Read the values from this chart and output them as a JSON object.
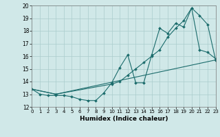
{
  "xlabel": "Humidex (Indice chaleur)",
  "xlim": [
    0,
    23
  ],
  "ylim": [
    12,
    20
  ],
  "yticks": [
    12,
    13,
    14,
    15,
    16,
    17,
    18,
    19,
    20
  ],
  "xticks": [
    0,
    1,
    2,
    3,
    4,
    5,
    6,
    7,
    8,
    9,
    10,
    11,
    12,
    13,
    14,
    15,
    16,
    17,
    18,
    19,
    20,
    21,
    22,
    23
  ],
  "background_color": "#d0e8e8",
  "grid_color": "#aacccc",
  "line_color": "#1a6b6b",
  "line1_x": [
    0,
    1,
    2,
    3,
    4,
    5,
    6,
    7,
    8,
    9,
    10,
    11,
    12,
    13,
    14,
    15,
    16,
    17,
    18,
    19,
    20,
    21,
    22,
    23
  ],
  "line1_y": [
    13.4,
    13.0,
    12.9,
    12.9,
    12.9,
    12.8,
    12.6,
    12.5,
    12.5,
    13.1,
    13.9,
    15.1,
    16.1,
    13.9,
    13.9,
    16.1,
    18.2,
    17.8,
    18.6,
    18.3,
    19.8,
    16.5,
    16.3,
    15.8
  ],
  "line2_x": [
    0,
    3,
    23
  ],
  "line2_y": [
    13.4,
    13.0,
    15.7
  ],
  "line3_x": [
    0,
    3,
    10,
    11,
    12,
    13,
    14,
    15,
    16,
    17,
    18,
    19,
    20,
    21,
    22,
    23
  ],
  "line3_y": [
    13.4,
    13.0,
    13.8,
    14.0,
    14.5,
    15.0,
    15.5,
    16.0,
    16.5,
    17.5,
    18.2,
    18.8,
    19.8,
    19.2,
    18.5,
    15.7
  ]
}
